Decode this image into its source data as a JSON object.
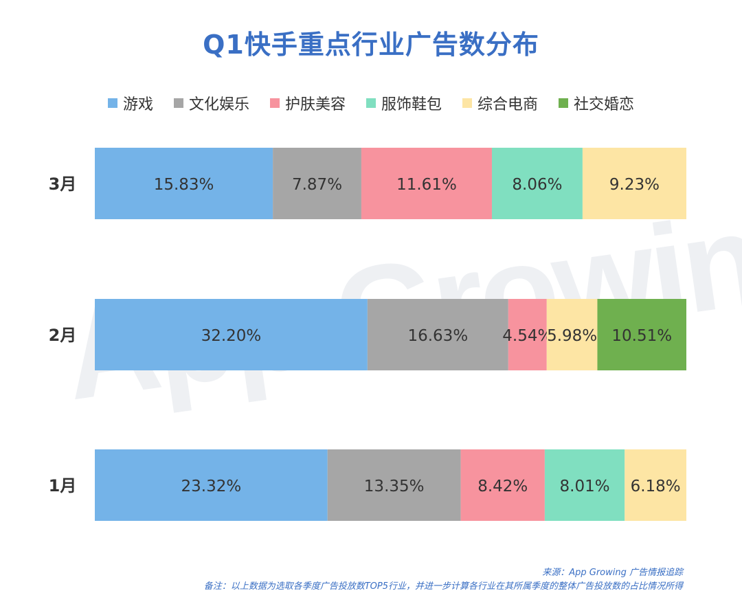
{
  "title": "Q1快手重点行业广告数分布",
  "source": "来源：App Growing 广告情报追踪",
  "note": "备注：以上数据为选取各季度广告投放数TOP5行业，并进一步计算各行业在其所属季度的整体广告投放数的占比情况所得",
  "watermark": "App Growing",
  "chart_data": {
    "type": "bar",
    "orientation": "horizontal",
    "stacked": true,
    "categories": [
      "3月",
      "2月",
      "1月"
    ],
    "series": [
      {
        "name": "游戏",
        "color": "#74b3e8",
        "values": [
          15.83,
          32.2,
          23.32
        ]
      },
      {
        "name": "文化娱乐",
        "color": "#a6a6a6",
        "values": [
          7.87,
          16.63,
          13.35
        ]
      },
      {
        "name": "护肤美容",
        "color": "#f7939e",
        "values": [
          11.61,
          4.54,
          8.42
        ]
      },
      {
        "name": "服饰鞋包",
        "color": "#80dfc0",
        "values": [
          8.06,
          null,
          8.01
        ]
      },
      {
        "name": "综合电商",
        "color": "#fde5a4",
        "values": [
          9.23,
          5.98,
          6.18
        ]
      },
      {
        "name": "社交婚恋",
        "color": "#6fb04f",
        "values": [
          null,
          10.51,
          null
        ]
      }
    ],
    "value_suffix": "%",
    "legend_position": "top",
    "grid": false
  }
}
